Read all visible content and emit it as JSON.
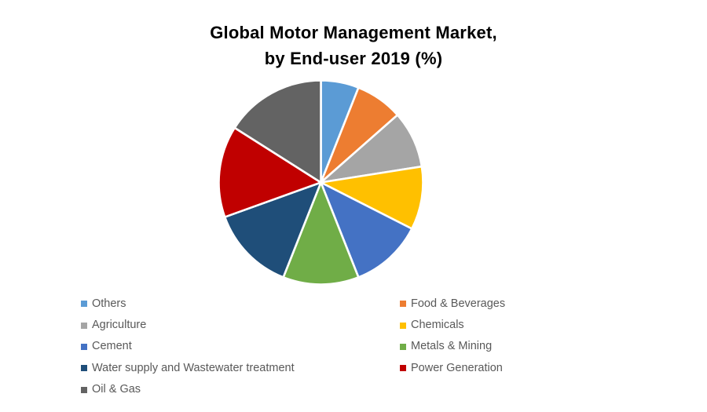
{
  "title": {
    "line1": "Global Motor Management Market,",
    "line2": "by End-user 2019 (%)"
  },
  "chart_data": {
    "type": "pie",
    "title": "Global Motor Management Market, by End-user 2019 (%)",
    "year": "2019",
    "unit": "%",
    "start_angle_deg": 0,
    "direction": "clockwise",
    "legend_position": "bottom",
    "legend_columns": 2,
    "slice_gap_color": "#ffffff",
    "legend_text_color": "#595959",
    "slices": [
      {
        "label": "Others",
        "value": 6,
        "color": "#5B9BD5"
      },
      {
        "label": "Food & Beverages",
        "value": 7.5,
        "color": "#ED7D31"
      },
      {
        "label": "Agriculture",
        "value": 9,
        "color": "#A5A5A5"
      },
      {
        "label": "Chemicals",
        "value": 10,
        "color": "#FFC000"
      },
      {
        "label": "Cement",
        "value": 11.5,
        "color": "#4472C4"
      },
      {
        "label": "Metals & Mining",
        "value": 12,
        "color": "#70AD47"
      },
      {
        "label": "Water supply and Wastewater treatment",
        "value": 13.5,
        "color": "#1F4E79"
      },
      {
        "label": "Power Generation",
        "value": 14.5,
        "color": "#C00000"
      },
      {
        "label": "Oil & Gas",
        "value": 16,
        "color": "#636363"
      }
    ]
  }
}
